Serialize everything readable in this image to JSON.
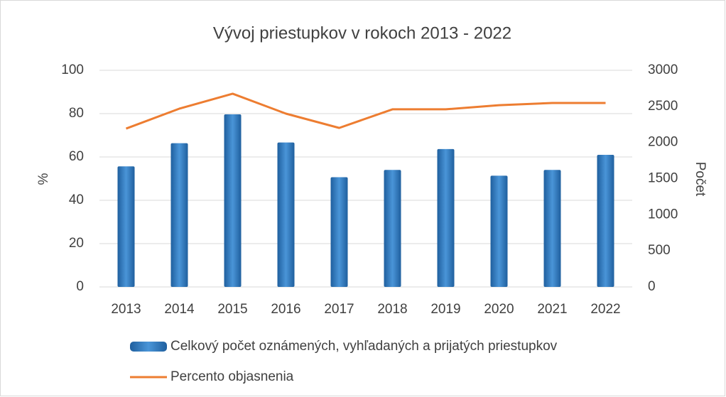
{
  "chart_data": {
    "type": "bar_line",
    "title": "Vývoj priestupkov v rokoch 2013 - 2022",
    "y_label": "%",
    "y2_label": "Počet",
    "categories": [
      "2013",
      "2014",
      "2015",
      "2016",
      "2017",
      "2018",
      "2019",
      "2020",
      "2021",
      "2022"
    ],
    "series": [
      {
        "name": "Celkový počet oznámených, vyhľadaných a prijatých priestupkov",
        "type": "bar",
        "axis": "y2",
        "color": "#2e75b6",
        "values": [
          1670,
          1990,
          2390,
          2000,
          1520,
          1620,
          1910,
          1540,
          1620,
          1830
        ]
      },
      {
        "name": "Percento objasnenia",
        "type": "line",
        "axis": "y",
        "color": "#ed7d31",
        "values": [
          73.1,
          82.3,
          89.2,
          80,
          73.4,
          82,
          82,
          83.9,
          84.9,
          84.9
        ]
      }
    ],
    "ylim": [
      0,
      100
    ],
    "yticks": [
      0,
      20,
      40,
      60,
      80,
      100
    ],
    "y2lim": [
      0,
      3000
    ],
    "y2ticks": [
      0,
      500,
      1000,
      1500,
      2000,
      2500,
      3000
    ],
    "grid": true,
    "legend": "bottom"
  }
}
